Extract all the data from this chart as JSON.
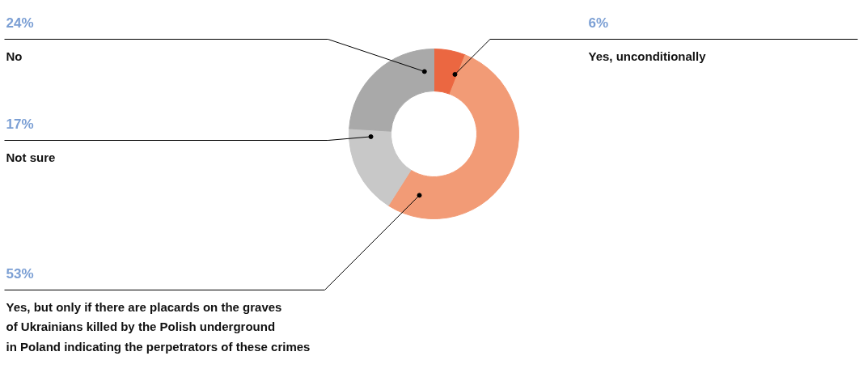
{
  "chart_data": {
    "type": "donut",
    "categories": [
      "Yes, unconditionally",
      "Yes, but only if there are placards on the graves\nof Ukrainians killed by the Polish underground\nin Poland indicating the perpetrators of these crimes",
      "Not sure",
      "No"
    ],
    "values": [
      6,
      53,
      17,
      24
    ],
    "colors": [
      "#eb6741",
      "#f29b76",
      "#c8c8c8",
      "#a9a9a9"
    ],
    "value_labels": [
      "6%",
      "53%",
      "17%",
      "24%"
    ]
  }
}
